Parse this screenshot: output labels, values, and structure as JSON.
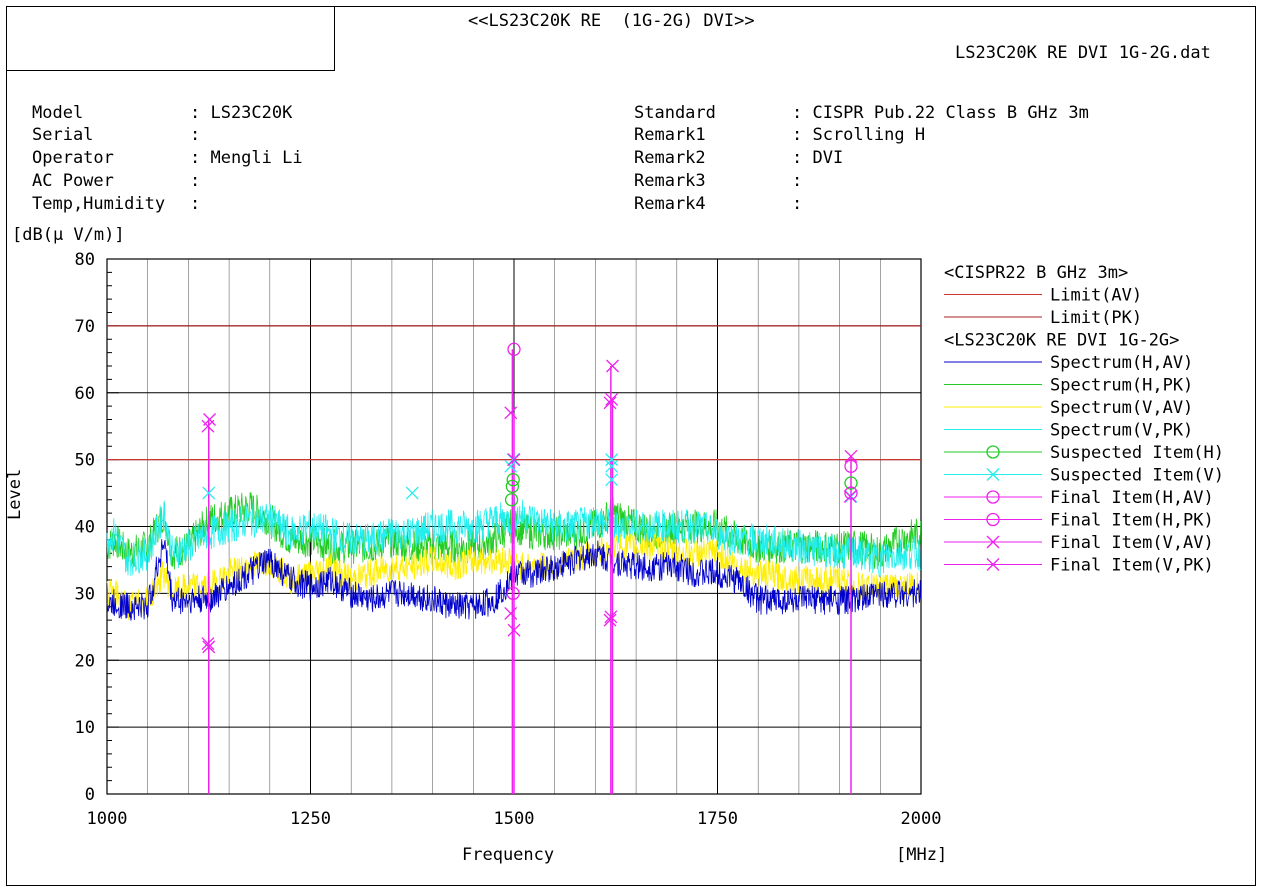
{
  "header": {
    "title": "<<LS23C20K RE  (1G-2G) DVI>>",
    "file": "LS23C20K RE DVI 1G-2G.dat"
  },
  "info_left": [
    {
      "label": "Model",
      "value": ": LS23C20K"
    },
    {
      "label": "Serial",
      "value": ":"
    },
    {
      "label": "Operator",
      "value": ": Mengli Li"
    },
    {
      "label": "AC Power",
      "value": ":"
    },
    {
      "label": "Temp,Humidity",
      "value": ":"
    }
  ],
  "info_right": [
    {
      "label": "Standard",
      "value": ": CISPR Pub.22 Class B GHz 3m"
    },
    {
      "label": "Remark1",
      "value": ": Scrolling H"
    },
    {
      "label": "Remark2",
      "value": ": DVI"
    },
    {
      "label": "Remark3",
      "value": ":"
    },
    {
      "label": "Remark4",
      "value": ":"
    }
  ],
  "chart_data": {
    "type": "line",
    "ylabel": "Level",
    "yunit": "[dB(μ V/m)]",
    "xlabel": "Frequency",
    "xunit": "[MHz]",
    "xlim": [
      1000,
      2000
    ],
    "ylim": [
      0,
      80
    ],
    "x_ticks": [
      1000,
      1250,
      1500,
      1750,
      2000
    ],
    "y_ticks": [
      0,
      10,
      20,
      30,
      40,
      50,
      60,
      70,
      80
    ],
    "grid": true,
    "legend_position": "right",
    "legend_groups": [
      {
        "heading": "<CISPR22 B GHz 3m>",
        "entries": [
          "Limit(AV)",
          "Limit(PK)"
        ]
      },
      {
        "heading": "<LS23C20K RE DVI 1G-2G>",
        "entries": [
          "Spectrum(H,AV)",
          "Spectrum(H,PK)",
          "Spectrum(V,AV)",
          "Spectrum(V,PK)",
          "Suspected Item(H)",
          "Suspected Item(V)",
          "Final Item(H,AV)",
          "Final Item(H,PK)",
          "Final Item(V,AV)",
          "Final Item(V,PK)"
        ]
      }
    ],
    "limits": [
      {
        "name": "Limit(AV)",
        "value": 50,
        "color": "#cc3333"
      },
      {
        "name": "Limit(PK)",
        "value": 70,
        "color": "#aa2222"
      }
    ],
    "series": [
      {
        "name": "Spectrum(H,AV)",
        "color": "#0000cc",
        "x": [
          1000,
          1010,
          1025,
          1050,
          1070,
          1080,
          1100,
          1125,
          1150,
          1175,
          1200,
          1225,
          1250,
          1275,
          1300,
          1325,
          1350,
          1375,
          1400,
          1425,
          1450,
          1475,
          1495,
          1500,
          1525,
          1550,
          1575,
          1600,
          1620,
          1650,
          1675,
          1700,
          1725,
          1750,
          1775,
          1800,
          1850,
          1900,
          1925,
          1950,
          1975,
          2000
        ],
        "values": [
          28,
          28.5,
          28,
          28,
          38,
          29,
          29,
          29,
          31,
          33,
          35,
          32,
          31,
          32,
          30,
          29,
          30,
          30,
          29,
          28,
          28,
          29,
          32,
          33,
          33,
          34,
          35,
          36,
          35,
          34,
          34,
          34,
          33,
          33,
          32,
          29,
          29,
          29,
          29,
          30,
          30,
          30
        ]
      },
      {
        "name": "Spectrum(H,PK)",
        "color": "#22cc22",
        "x": [
          1000,
          1010,
          1025,
          1050,
          1070,
          1080,
          1100,
          1125,
          1150,
          1175,
          1200,
          1225,
          1250,
          1275,
          1300,
          1325,
          1350,
          1375,
          1400,
          1425,
          1450,
          1475,
          1495,
          1500,
          1525,
          1550,
          1575,
          1600,
          1620,
          1650,
          1675,
          1700,
          1725,
          1750,
          1775,
          1800,
          1850,
          1900,
          1925,
          1950,
          1975,
          2000
        ],
        "values": [
          37,
          38,
          36,
          37,
          42,
          36,
          37,
          41,
          42,
          43,
          41,
          38,
          38,
          37,
          37,
          37,
          38,
          37,
          37,
          37,
          37,
          38,
          40,
          40,
          39,
          39,
          39,
          40,
          42,
          40,
          39,
          40,
          40,
          40,
          38,
          37,
          37,
          37,
          37,
          36,
          38,
          39
        ]
      },
      {
        "name": "Spectrum(V,AV)",
        "color": "#ffee00",
        "x": [
          1000,
          1010,
          1025,
          1050,
          1070,
          1080,
          1100,
          1125,
          1150,
          1175,
          1200,
          1225,
          1250,
          1275,
          1300,
          1325,
          1350,
          1375,
          1400,
          1425,
          1450,
          1475,
          1495,
          1500,
          1525,
          1550,
          1575,
          1600,
          1620,
          1650,
          1675,
          1700,
          1725,
          1750,
          1775,
          1800,
          1850,
          1900,
          1925,
          1950,
          1975,
          2000
        ],
        "values": [
          30,
          30,
          28,
          29,
          33,
          30,
          31,
          31,
          33,
          34,
          35,
          32,
          33,
          34,
          32,
          33,
          34,
          34,
          35,
          34,
          35,
          35,
          35,
          34,
          34,
          34,
          35,
          36,
          37,
          37,
          37,
          36,
          36,
          36,
          34,
          33,
          32,
          32,
          31,
          31,
          31,
          31
        ]
      },
      {
        "name": "Spectrum(V,PK)",
        "color": "#22eeee",
        "x": [
          1000,
          1010,
          1025,
          1050,
          1070,
          1080,
          1100,
          1125,
          1150,
          1175,
          1200,
          1225,
          1250,
          1275,
          1300,
          1325,
          1350,
          1375,
          1400,
          1425,
          1450,
          1475,
          1495,
          1500,
          1525,
          1550,
          1575,
          1600,
          1620,
          1650,
          1675,
          1700,
          1725,
          1750,
          1775,
          1800,
          1850,
          1900,
          1925,
          1950,
          1975,
          2000
        ],
        "values": [
          38,
          39,
          35,
          36,
          42,
          36,
          37,
          39,
          40,
          41,
          41,
          39,
          40,
          39,
          38,
          38,
          39,
          39,
          40,
          40,
          40,
          41,
          41,
          42,
          41,
          40,
          40,
          41,
          40,
          40,
          40,
          40,
          40,
          39,
          38,
          38,
          37,
          36,
          36,
          35,
          36,
          36
        ]
      }
    ],
    "suspected_items": [
      {
        "name": "Suspected Item(H)",
        "color": "#22cc22",
        "marker": "circle",
        "points": [
          [
            1497,
            44
          ],
          [
            1498,
            46
          ],
          [
            1499,
            47
          ],
          [
            1914,
            46.5
          ]
        ]
      },
      {
        "name": "Suspected Item(V)",
        "color": "#22eeee",
        "marker": "x",
        "points": [
          [
            1125,
            45
          ],
          [
            1375,
            45
          ],
          [
            1496,
            49
          ],
          [
            1499,
            50
          ],
          [
            1620,
            47
          ],
          [
            1620,
            50
          ],
          [
            1620,
            49
          ],
          [
            1914,
            44.5
          ]
        ]
      }
    ],
    "final_items": [
      {
        "name": "Final Item(H,AV)",
        "color": "#ee22ee",
        "marker": "circle",
        "points": [
          [
            1499,
            30
          ],
          [
            1914,
            45
          ]
        ]
      },
      {
        "name": "Final Item(H,PK)",
        "color": "#ee22ee",
        "marker": "circle",
        "points": [
          [
            1500,
            66.5
          ],
          [
            1914,
            49
          ]
        ]
      },
      {
        "name": "Final Item(V,AV)",
        "color": "#ee22ee",
        "marker": "x",
        "points": [
          [
            1124,
            22.5
          ],
          [
            1125,
            22
          ],
          [
            1496,
            27
          ],
          [
            1500,
            24.5
          ],
          [
            1618,
            26
          ],
          [
            1619,
            26.5
          ],
          [
            1913,
            44.5
          ]
        ]
      },
      {
        "name": "Final Item(V,PK)",
        "color": "#ee22ee",
        "marker": "x",
        "points": [
          [
            1124,
            55
          ],
          [
            1126,
            56
          ],
          [
            1496,
            57
          ],
          [
            1500,
            50
          ],
          [
            1618,
            58.5
          ],
          [
            1620,
            59
          ],
          [
            1621,
            64
          ],
          [
            1914,
            50.5
          ]
        ]
      }
    ],
    "spikes": [
      {
        "x": 1125,
        "value": 56
      },
      {
        "x": 1498,
        "value": 66.5
      },
      {
        "x": 1500,
        "value": 57
      },
      {
        "x": 1619,
        "value": 64
      },
      {
        "x": 1621,
        "value": 59
      },
      {
        "x": 1914,
        "value": 50.5
      }
    ]
  }
}
